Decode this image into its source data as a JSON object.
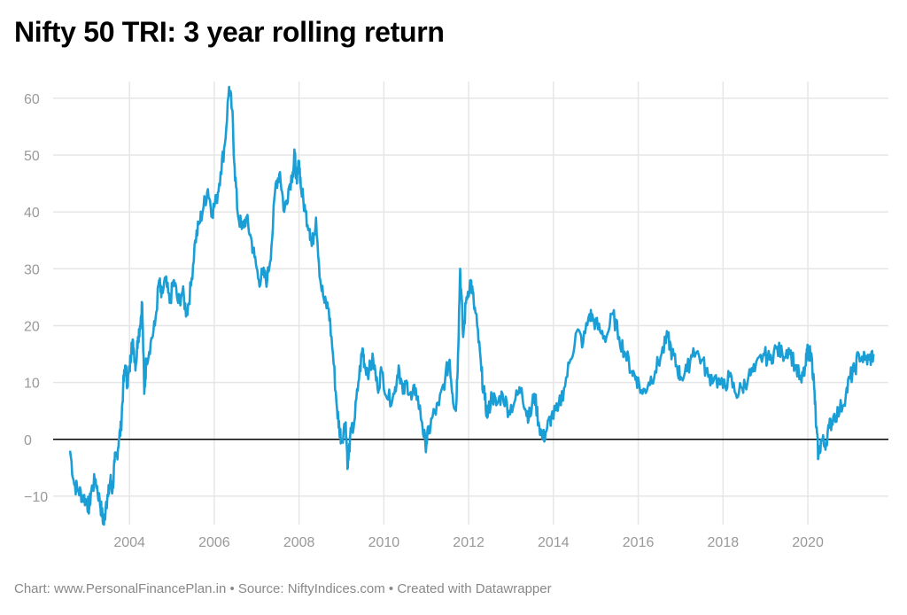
{
  "title": "Nifty 50 TRI: 3 year rolling return",
  "footer": "Chart: www.PersonalFinancePlan.in • Source: NiftyIndices.com • Created with Datawrapper",
  "colors": {
    "line": "#1a9ed6",
    "grid": "#e6e6e6",
    "zero": "#000000",
    "tick_text": "#999999"
  },
  "chart_data": {
    "type": "line",
    "title": "Nifty 50 TRI: 3 year rolling return",
    "xlabel": "",
    "ylabel": "",
    "xlim": [
      2002.2,
      2021.9
    ],
    "ylim": [
      -15,
      62
    ],
    "grid": true,
    "x_ticks": [
      2004,
      2006,
      2008,
      2010,
      2012,
      2014,
      2016,
      2018,
      2020
    ],
    "y_ticks": [
      -10,
      0,
      10,
      20,
      30,
      40,
      50,
      60
    ],
    "series": [
      {
        "points": [
          [
            2002.6,
            -2
          ],
          [
            2002.7,
            -8
          ],
          [
            2002.8,
            -9
          ],
          [
            2002.9,
            -10
          ],
          [
            2003.0,
            -11
          ],
          [
            2003.05,
            -12
          ],
          [
            2003.1,
            -9
          ],
          [
            2003.2,
            -7
          ],
          [
            2003.3,
            -11
          ],
          [
            2003.35,
            -13
          ],
          [
            2003.4,
            -15
          ],
          [
            2003.45,
            -11
          ],
          [
            2003.5,
            -10
          ],
          [
            2003.55,
            -7
          ],
          [
            2003.6,
            -9
          ],
          [
            2003.65,
            -4
          ],
          [
            2003.7,
            -3
          ],
          [
            2003.75,
            0
          ],
          [
            2003.8,
            2
          ],
          [
            2003.85,
            9
          ],
          [
            2003.9,
            13
          ],
          [
            2003.95,
            10
          ],
          [
            2004.0,
            12
          ],
          [
            2004.05,
            17
          ],
          [
            2004.1,
            16
          ],
          [
            2004.15,
            13
          ],
          [
            2004.2,
            18
          ],
          [
            2004.25,
            20
          ],
          [
            2004.3,
            24
          ],
          [
            2004.35,
            8
          ],
          [
            2004.4,
            14
          ],
          [
            2004.5,
            17
          ],
          [
            2004.6,
            20
          ],
          [
            2004.7,
            28
          ],
          [
            2004.75,
            25
          ],
          [
            2004.85,
            28
          ],
          [
            2004.95,
            24
          ],
          [
            2005.05,
            28
          ],
          [
            2005.15,
            24
          ],
          [
            2005.25,
            26
          ],
          [
            2005.35,
            22
          ],
          [
            2005.45,
            27
          ],
          [
            2005.55,
            35
          ],
          [
            2005.65,
            38
          ],
          [
            2005.75,
            41
          ],
          [
            2005.85,
            44
          ],
          [
            2005.95,
            40
          ],
          [
            2006.05,
            42
          ],
          [
            2006.15,
            47
          ],
          [
            2006.25,
            52
          ],
          [
            2006.35,
            62
          ],
          [
            2006.42,
            58
          ],
          [
            2006.48,
            48
          ],
          [
            2006.55,
            40
          ],
          [
            2006.65,
            37
          ],
          [
            2006.75,
            39
          ],
          [
            2006.85,
            36
          ],
          [
            2006.95,
            32
          ],
          [
            2007.05,
            28
          ],
          [
            2007.15,
            29
          ],
          [
            2007.25,
            28
          ],
          [
            2007.35,
            34
          ],
          [
            2007.45,
            45
          ],
          [
            2007.55,
            47
          ],
          [
            2007.65,
            40
          ],
          [
            2007.75,
            44
          ],
          [
            2007.85,
            47
          ],
          [
            2007.9,
            50
          ],
          [
            2007.95,
            45
          ],
          [
            2008.0,
            49
          ],
          [
            2008.05,
            44
          ],
          [
            2008.15,
            40
          ],
          [
            2008.25,
            37
          ],
          [
            2008.3,
            34
          ],
          [
            2008.4,
            39
          ],
          [
            2008.5,
            28
          ],
          [
            2008.6,
            24
          ],
          [
            2008.7,
            23
          ],
          [
            2008.8,
            15
          ],
          [
            2008.9,
            5
          ],
          [
            2008.95,
            2
          ],
          [
            2009.0,
            0
          ],
          [
            2009.1,
            3
          ],
          [
            2009.15,
            -5
          ],
          [
            2009.2,
            0
          ],
          [
            2009.3,
            3
          ],
          [
            2009.4,
            10
          ],
          [
            2009.5,
            16
          ],
          [
            2009.55,
            13
          ],
          [
            2009.65,
            12
          ],
          [
            2009.75,
            14
          ],
          [
            2009.85,
            9
          ],
          [
            2009.95,
            12
          ],
          [
            2010.1,
            7
          ],
          [
            2010.25,
            8
          ],
          [
            2010.35,
            13
          ],
          [
            2010.45,
            8
          ],
          [
            2010.55,
            10
          ],
          [
            2010.65,
            7
          ],
          [
            2010.75,
            9
          ],
          [
            2010.9,
            3
          ],
          [
            2010.98,
            -1
          ],
          [
            2011.05,
            1
          ],
          [
            2011.15,
            4
          ],
          [
            2011.3,
            6
          ],
          [
            2011.45,
            11
          ],
          [
            2011.55,
            14
          ],
          [
            2011.62,
            8
          ],
          [
            2011.7,
            5
          ],
          [
            2011.75,
            15
          ],
          [
            2011.8,
            30
          ],
          [
            2011.87,
            18
          ],
          [
            2011.95,
            25
          ],
          [
            2012.05,
            28
          ],
          [
            2012.12,
            24
          ],
          [
            2012.2,
            20
          ],
          [
            2012.3,
            12
          ],
          [
            2012.38,
            7
          ],
          [
            2012.45,
            4
          ],
          [
            2012.55,
            8
          ],
          [
            2012.65,
            6
          ],
          [
            2012.8,
            8
          ],
          [
            2012.95,
            5
          ],
          [
            2013.1,
            7
          ],
          [
            2013.25,
            9
          ],
          [
            2013.35,
            5
          ],
          [
            2013.45,
            4
          ],
          [
            2013.55,
            8
          ],
          [
            2013.65,
            3
          ],
          [
            2013.75,
            0
          ],
          [
            2013.85,
            2
          ],
          [
            2013.95,
            4
          ],
          [
            2014.1,
            5
          ],
          [
            2014.25,
            9
          ],
          [
            2014.4,
            14
          ],
          [
            2014.55,
            19
          ],
          [
            2014.7,
            17
          ],
          [
            2014.85,
            22
          ],
          [
            2014.95,
            21
          ],
          [
            2015.1,
            19
          ],
          [
            2015.25,
            18
          ],
          [
            2015.4,
            22
          ],
          [
            2015.55,
            18
          ],
          [
            2015.7,
            15
          ],
          [
            2015.85,
            12
          ],
          [
            2015.95,
            11
          ],
          [
            2016.1,
            8
          ],
          [
            2016.25,
            10
          ],
          [
            2016.4,
            12
          ],
          [
            2016.55,
            15
          ],
          [
            2016.7,
            18
          ],
          [
            2016.8,
            15
          ],
          [
            2016.9,
            13
          ],
          [
            2017.0,
            11
          ],
          [
            2017.15,
            12
          ],
          [
            2017.3,
            16
          ],
          [
            2017.5,
            14
          ],
          [
            2017.65,
            11
          ],
          [
            2017.8,
            11
          ],
          [
            2018.0,
            9
          ],
          [
            2018.15,
            11
          ],
          [
            2018.3,
            8
          ],
          [
            2018.45,
            9
          ],
          [
            2018.6,
            11
          ],
          [
            2018.75,
            12
          ],
          [
            2018.95,
            15
          ],
          [
            2019.1,
            14
          ],
          [
            2019.25,
            16
          ],
          [
            2019.4,
            15
          ],
          [
            2019.55,
            16
          ],
          [
            2019.7,
            13
          ],
          [
            2019.85,
            10
          ],
          [
            2019.95,
            13
          ],
          [
            2020.0,
            16
          ],
          [
            2020.1,
            14
          ],
          [
            2020.15,
            9
          ],
          [
            2020.2,
            2
          ],
          [
            2020.25,
            -3
          ],
          [
            2020.32,
            0
          ],
          [
            2020.4,
            -1
          ],
          [
            2020.5,
            2
          ],
          [
            2020.6,
            4
          ],
          [
            2020.75,
            5
          ],
          [
            2020.9,
            8
          ],
          [
            2021.0,
            11
          ],
          [
            2021.1,
            12
          ],
          [
            2021.2,
            15
          ],
          [
            2021.35,
            14
          ],
          [
            2021.45,
            14
          ],
          [
            2021.55,
            15
          ]
        ]
      }
    ]
  }
}
